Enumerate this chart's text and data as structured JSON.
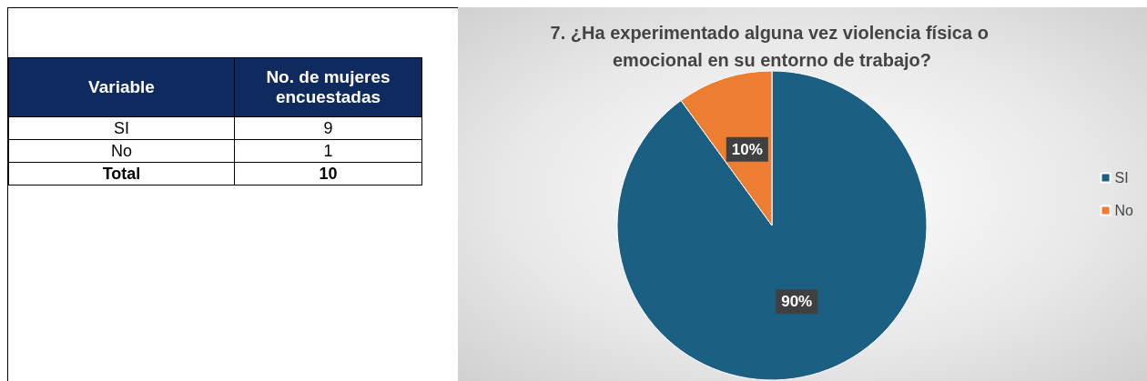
{
  "chart_data": [
    {
      "type": "other",
      "xlabel": "Variable",
      "ylabel": "No. de mujeres encuestadas",
      "categories": [
        "SI",
        "No",
        "Total"
      ],
      "values": [
        9,
        1,
        10
      ],
      "data_labels": true
    },
    {
      "type": "pie",
      "title": "7. ¿Ha experimentado alguna vez violencia física o emocional en su entorno de trabajo?",
      "categories": [
        "SI",
        "No"
      ],
      "values": [
        90,
        10
      ],
      "colors": [
        "#1b5f83",
        "#ed7d31"
      ],
      "value_labels": [
        "90%",
        "10%"
      ],
      "legend": "right"
    }
  ]
}
